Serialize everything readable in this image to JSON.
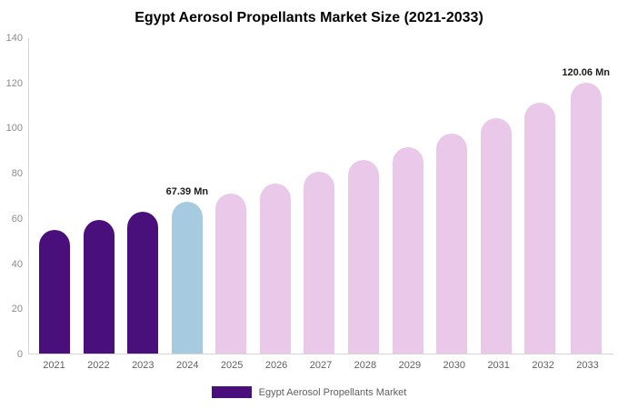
{
  "chart_data": {
    "type": "bar",
    "title": "Egypt Aerosol Propellants Market Size (2021-2033)",
    "categories": [
      "2021",
      "2022",
      "2023",
      "2024",
      "2025",
      "2026",
      "2027",
      "2028",
      "2029",
      "2030",
      "2031",
      "2032",
      "2033"
    ],
    "values": [
      55,
      59.5,
      63,
      67.39,
      71,
      75.5,
      80.5,
      86,
      91.5,
      97.5,
      104.5,
      111.5,
      120.06
    ],
    "ylim": [
      0,
      140
    ],
    "yticks": [
      0,
      20,
      40,
      60,
      80,
      100,
      120,
      140
    ],
    "grid": false,
    "annotations": {
      "2024": "67.39 Mn",
      "2033": "120.06 Mn"
    },
    "bar_colors": [
      "#49107c",
      "#49107c",
      "#49107c",
      "#a6cbe1",
      "#e9c8ea",
      "#e9c8ea",
      "#e9c8ea",
      "#e9c8ea",
      "#e9c8ea",
      "#e9c8ea",
      "#e9c8ea",
      "#e9c8ea",
      "#e9c8ea"
    ],
    "colors": {
      "dark_purple": "#49107c",
      "highlight_blue": "#a6cbe1",
      "forecast_pink": "#e9c8ea"
    },
    "legend": {
      "label": "Egypt Aerosol Propellants Market",
      "color": "#49107c",
      "position": "bottom"
    },
    "xlabel": "",
    "ylabel": ""
  }
}
